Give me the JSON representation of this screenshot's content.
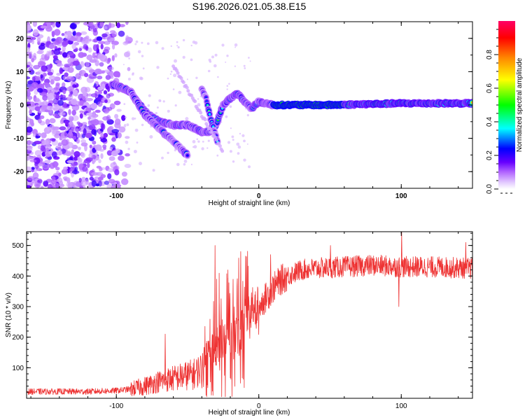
{
  "title": "S196.2026.021.05.38.E15",
  "chart_data": [
    {
      "type": "heatmap",
      "xlabel": "Height of straight line (km)",
      "ylabel": "Frequency (Hz)",
      "xlim": [
        -163,
        150
      ],
      "ylim": [
        -25,
        25
      ],
      "x_ticks": [
        -100,
        0,
        100
      ],
      "x_tick_labels": [
        "-100",
        "0",
        "100"
      ],
      "y_ticks": [
        -20,
        -10,
        0,
        10,
        20
      ],
      "y_tick_labels": [
        "-20",
        "-10",
        "0",
        "10",
        "20"
      ],
      "colorbar": {
        "label": "Normalized spectral amplitude",
        "range": [
          0.0,
          1.0
        ],
        "ticks": [
          0.0,
          0.2,
          0.4,
          0.6,
          0.8
        ],
        "tick_labels": [
          "0.0",
          "0.2",
          "0.4",
          "0.6",
          "0.8"
        ],
        "colormap": [
          "#ffffff",
          "#cc99ff",
          "#7f00ff",
          "#0000ff",
          "#00ffff",
          "#00ff00",
          "#ffff00",
          "#ff8800",
          "#ff0000",
          "#ff0066"
        ]
      },
      "features": {
        "carrier_track": [
          [
            -100,
            6
          ],
          [
            -90,
            4
          ],
          [
            -80,
            -2
          ],
          [
            -70,
            -5
          ],
          [
            -60,
            -6
          ],
          [
            -50,
            -6
          ],
          [
            -40,
            -8
          ],
          [
            -35,
            -8
          ],
          [
            -30,
            -6
          ],
          [
            -25,
            0
          ],
          [
            -20,
            2
          ],
          [
            -15,
            3.5
          ],
          [
            -10,
            1
          ],
          [
            -5,
            -1
          ],
          [
            0,
            1
          ],
          [
            5,
            0.5
          ],
          [
            10,
            0
          ],
          [
            50,
            0
          ],
          [
            100,
            0.5
          ],
          [
            150,
            0.5
          ]
        ],
        "branch_track": [
          [
            -90,
            4
          ],
          [
            -80,
            -3
          ],
          [
            -70,
            -7
          ],
          [
            -60,
            -11
          ],
          [
            -55,
            -13
          ],
          [
            -50,
            -15
          ]
        ],
        "spur_track": [
          [
            -40,
            5
          ],
          [
            -37,
            2
          ],
          [
            -34,
            -4
          ],
          [
            -31,
            -8
          ],
          [
            -29,
            -11
          ]
        ],
        "noise_region": [
          -163,
          -95
        ]
      }
    },
    {
      "type": "line",
      "xlabel": "Height of straight line (km)",
      "ylabel": "SNR (10 * v/v)",
      "xlim": [
        -163,
        150
      ],
      "ylim": [
        0,
        545
      ],
      "x_ticks": [
        -100,
        0,
        100
      ],
      "x_tick_labels": [
        "-100",
        "0",
        "100"
      ],
      "y_ticks": [
        100,
        200,
        300,
        400,
        500
      ],
      "y_tick_labels": [
        "100",
        "200",
        "300",
        "400",
        "500"
      ],
      "color": "#ee3333",
      "envelope": {
        "x": [
          -163,
          -120,
          -100,
          -90,
          -80,
          -70,
          -60,
          -50,
          -45,
          -40,
          -35,
          -30,
          -25,
          -20,
          -15,
          -10,
          -5,
          0,
          5,
          10,
          15,
          20,
          25,
          30,
          40,
          60,
          80,
          100,
          120,
          150
        ],
        "y": [
          22,
          22,
          25,
          30,
          40,
          55,
          65,
          75,
          80,
          100,
          130,
          160,
          190,
          200,
          215,
          240,
          270,
          300,
          330,
          360,
          385,
          400,
          410,
          420,
          425,
          430,
          435,
          430,
          430,
          425
        ]
      },
      "spikes": [
        [
          -66,
          210
        ],
        [
          -31,
          500
        ],
        [
          -28,
          310
        ],
        [
          -22,
          420
        ],
        [
          -13,
          480
        ],
        [
          8,
          470
        ],
        [
          50,
          500
        ],
        [
          100,
          545
        ],
        [
          98,
          300
        ],
        [
          145,
          510
        ]
      ]
    }
  ]
}
